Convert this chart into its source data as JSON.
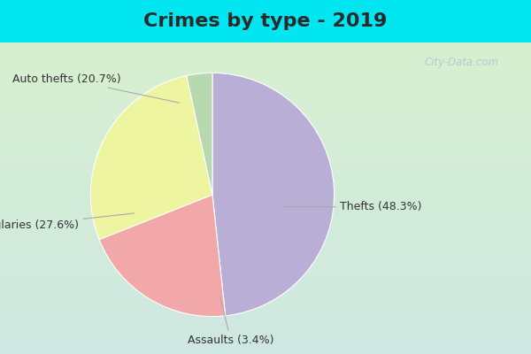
{
  "title": "Crimes by type - 2019",
  "slices": [
    {
      "label": "Thefts",
      "pct": 48.3,
      "color": "#b8aed6"
    },
    {
      "label": "Auto thefts",
      "pct": 20.7,
      "color": "#f2a8a8"
    },
    {
      "label": "Burglaries",
      "pct": 27.6,
      "color": "#eef5a0"
    },
    {
      "label": "Assaults",
      "pct": 3.4,
      "color": "#b8d8b0"
    }
  ],
  "outer_bg": "#00e5f0",
  "inner_bg_top": "#cce8e0",
  "inner_bg_bottom": "#d8f0d8",
  "watermark": "City-Data.com",
  "title_fontsize": 16,
  "label_fontsize": 9,
  "startangle": 90
}
